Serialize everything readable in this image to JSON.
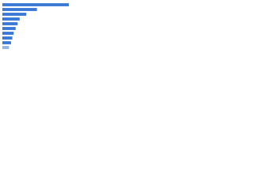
{
  "chart_data": {
    "type": "barh",
    "categories": [
      null,
      null,
      null,
      null,
      null,
      null,
      null,
      null,
      null,
      null
    ],
    "values": [
      100,
      52,
      36,
      26,
      23,
      20,
      17,
      15,
      13,
      10
    ],
    "colors": [
      "#3a78d6",
      "#3a78d6",
      "#3a78d6",
      "#3a78d6",
      "#3a78d6",
      "#3a78d6",
      "#3a78d6",
      "#3a78d6",
      "#3a78d6",
      "#8fb4ea"
    ],
    "xlim": [
      0,
      100
    ]
  }
}
